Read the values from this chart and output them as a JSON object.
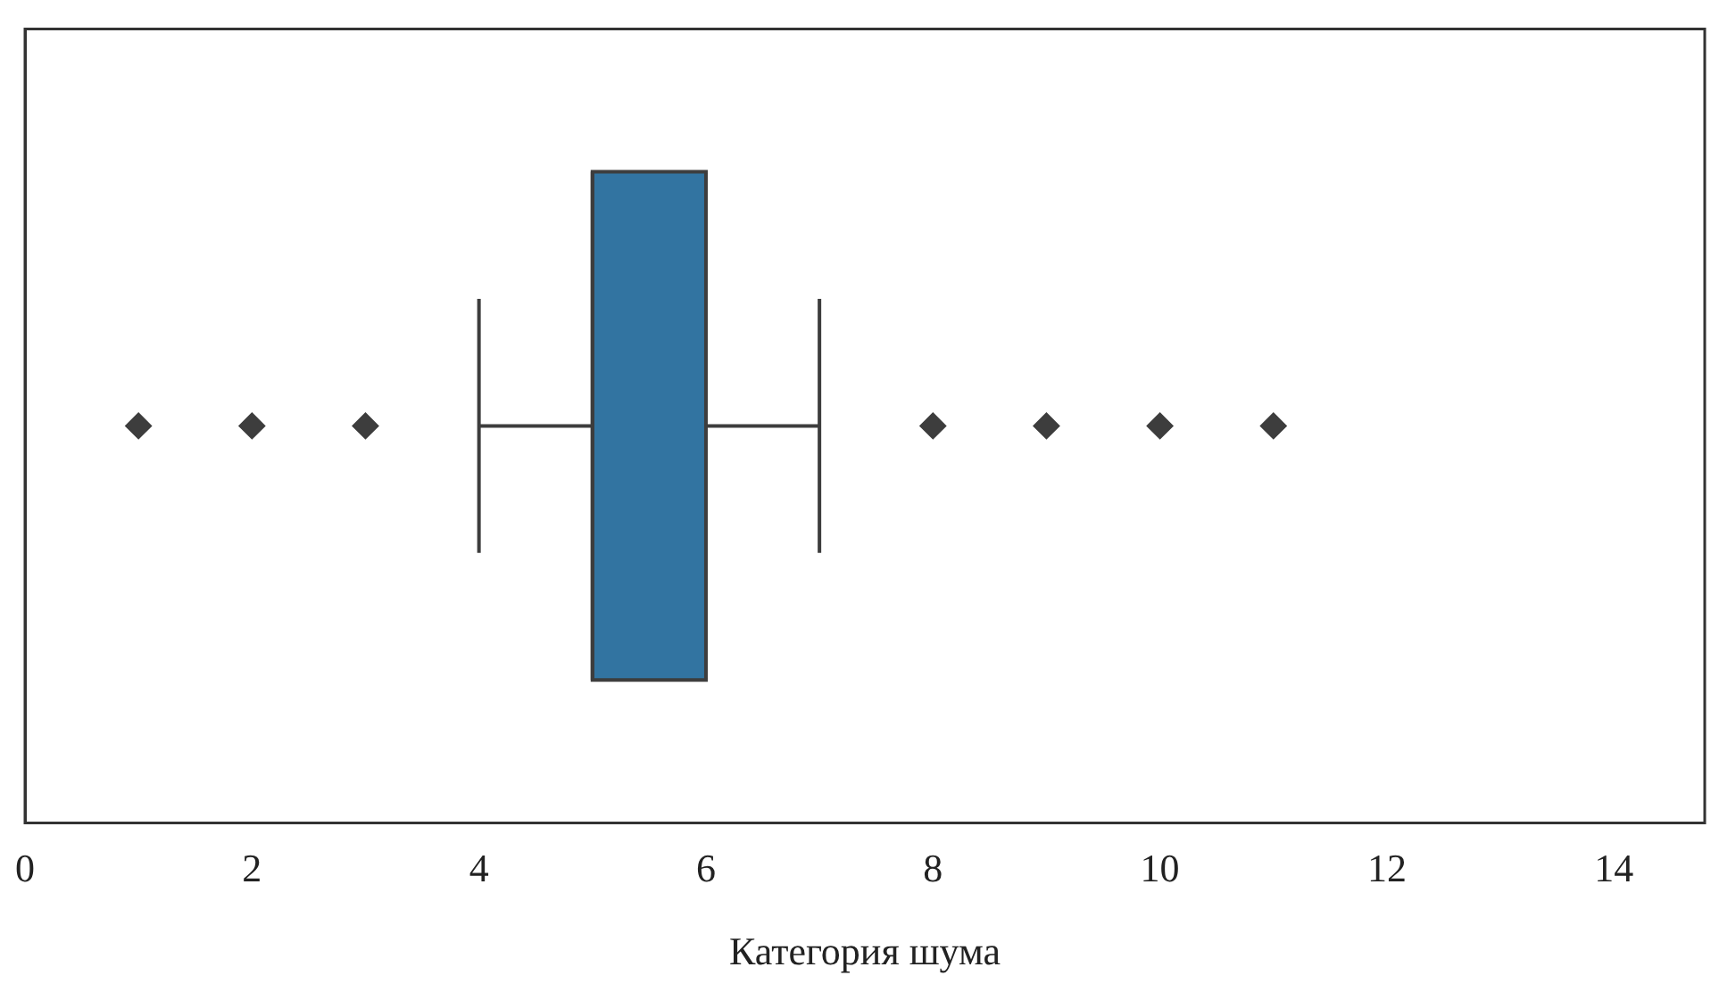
{
  "chart_data": {
    "type": "box",
    "orientation": "horizontal",
    "categories": [
      null
    ],
    "xlabel": "Категория шума",
    "xlim": [
      0,
      14.8
    ],
    "xticks": [
      0,
      2,
      4,
      6,
      8,
      10,
      12,
      14
    ],
    "grid": false,
    "legend": false,
    "marker": "diamond",
    "series": [
      {
        "color": "#3274a1",
        "boxes": [
          {
            "low": 4,
            "q1": 5,
            "median": 5,
            "q3": 6,
            "high": 7,
            "outliers": [
              1,
              2,
              3,
              8,
              9,
              10,
              11
            ]
          }
        ]
      }
    ]
  }
}
